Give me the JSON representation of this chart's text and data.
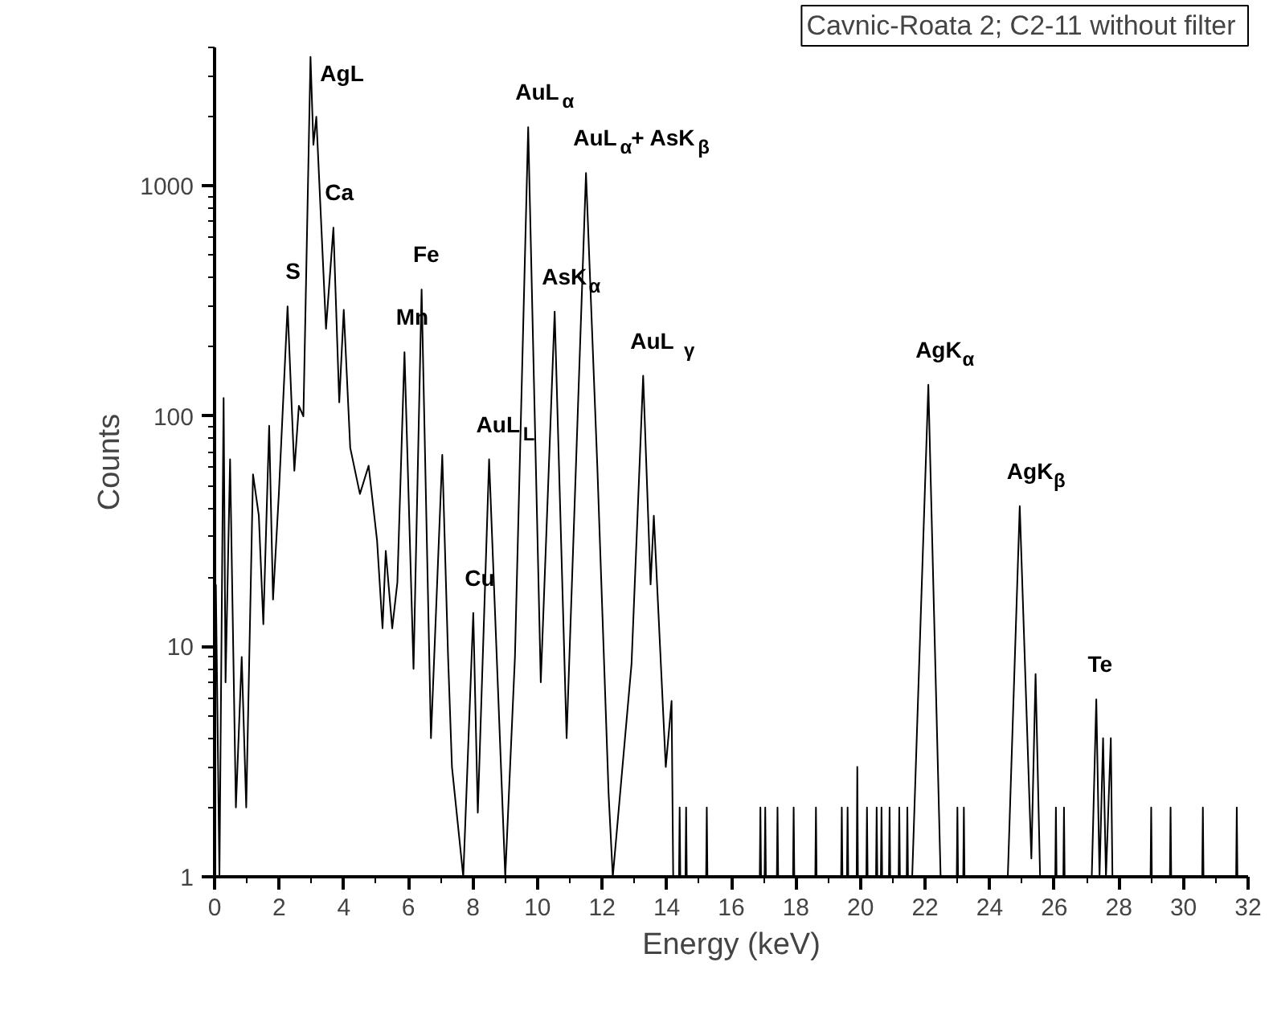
{
  "chart_data": {
    "type": "line",
    "title": "Cavnic-Roata 2;  C2-11 without filter",
    "xlabel": "Energy (keV)",
    "ylabel": "Counts",
    "log": "y",
    "grid": false,
    "marker": "none",
    "line_style": "solid",
    "xlim": [
      0,
      32
    ],
    "ylim": [
      1,
      4000
    ],
    "xticks": [
      0,
      2,
      4,
      6,
      8,
      10,
      12,
      14,
      16,
      18,
      20,
      22,
      24,
      26,
      28,
      30,
      32
    ],
    "yticks": [
      1,
      10,
      100,
      1000
    ],
    "series": [
      {
        "color": "#000000",
        "x": [
          0.04,
          0.15,
          0.28,
          0.34,
          0.48,
          0.66,
          0.84,
          0.98,
          1.19,
          1.37,
          1.51,
          1.69,
          1.81,
          1.99,
          2.26,
          2.47,
          2.61,
          2.75,
          2.97,
          3.06,
          3.15,
          3.45,
          3.68,
          3.86,
          4.0,
          4.2,
          4.5,
          4.77,
          5.03,
          5.2,
          5.3,
          5.5,
          5.66,
          5.88,
          6.16,
          6.41,
          6.7,
          7.05,
          7.23,
          7.35,
          7.7,
          8.01,
          8.15,
          8.5,
          9.0,
          9.3,
          9.71,
          10.1,
          10.53,
          10.9,
          11.5,
          11.85,
          12.2,
          12.33,
          12.91,
          13.27,
          13.5,
          13.6,
          13.97,
          14.15,
          14.2,
          14.38,
          14.4,
          14.42,
          14.58,
          14.6,
          14.62,
          15.22,
          15.24,
          15.26,
          16.88,
          16.9,
          16.92,
          17.03,
          17.05,
          17.07,
          17.41,
          17.43,
          17.45,
          17.91,
          17.93,
          17.95,
          18.6,
          18.62,
          18.64,
          19.4,
          19.42,
          19.44,
          19.58,
          19.6,
          19.62,
          19.88,
          19.9,
          19.92,
          20.18,
          20.2,
          20.22,
          20.48,
          20.5,
          20.52,
          20.63,
          20.65,
          20.67,
          20.88,
          20.9,
          20.92,
          21.18,
          21.2,
          21.22,
          21.43,
          21.45,
          21.47,
          21.6,
          22.1,
          22.48,
          22.98,
          23.0,
          23.02,
          23.18,
          23.2,
          23.22,
          24.56,
          24.93,
          25.29,
          25.42,
          25.56,
          26.03,
          26.05,
          26.07,
          26.28,
          26.3,
          26.32,
          27.16,
          27.3,
          27.4,
          27.51,
          27.6,
          27.75,
          27.8,
          28.98,
          29.0,
          29.02,
          29.58,
          29.6,
          29.62,
          30.58,
          30.6,
          30.62,
          31.63,
          31.65,
          31.67,
          32.0
        ],
        "values": [
          18.6,
          1,
          120,
          7,
          65,
          2,
          9,
          2,
          56,
          37,
          12.5,
          91,
          16,
          46,
          300,
          58,
          111,
          100,
          3640,
          1510,
          2000,
          240,
          660,
          115,
          290,
          73,
          46,
          61,
          29,
          12,
          26,
          12,
          19,
          190,
          8,
          355,
          4,
          68,
          9,
          3,
          1,
          14,
          1.9,
          65,
          1,
          9,
          1800,
          7,
          285,
          4,
          1140,
          61,
          2.3,
          1,
          8.4,
          150,
          18.6,
          37,
          3,
          5.8,
          1,
          1,
          2,
          1,
          1,
          2,
          1,
          1,
          2,
          1,
          1,
          2,
          1,
          1,
          2,
          1,
          1,
          2,
          1,
          1,
          2,
          1,
          1,
          2,
          1,
          1,
          2,
          1,
          1,
          2,
          1,
          1,
          3,
          1,
          1,
          2,
          1,
          1,
          2,
          1,
          1,
          2,
          1,
          1,
          2,
          1,
          1,
          2,
          1,
          1,
          2,
          1,
          1,
          137,
          1,
          1,
          2,
          1,
          1,
          2,
          1,
          1,
          40.7,
          1.2,
          7.6,
          1,
          1,
          2,
          1,
          1,
          2,
          1,
          1,
          5.9,
          1,
          4,
          1,
          4,
          1,
          1,
          2,
          1,
          1,
          2,
          1,
          1,
          2,
          1,
          1,
          2,
          1,
          1
        ]
      }
    ],
    "annotations": [
      {
        "text": "AgL",
        "x": 2.97,
        "y": 3640
      },
      {
        "text": "S",
        "x": 2.26,
        "y": 300
      },
      {
        "text": "Ca",
        "x": 3.68,
        "y": 660
      },
      {
        "text": "Mn",
        "x": 5.88,
        "y": 190
      },
      {
        "text": "Fe",
        "x": 6.41,
        "y": 355
      },
      {
        "text": "Cu",
        "x": 8.01,
        "y": 14
      },
      {
        "text": "AuL$_{L}$",
        "x": 8.5,
        "y": 65
      },
      {
        "text": "AuL$_{α}$",
        "x": 9.71,
        "y": 1800
      },
      {
        "text": "AsK$_{α}$",
        "x": 10.53,
        "y": 285
      },
      {
        "text": "AuL$_{α}$+ AsK$_{β}$",
        "x": 11.5,
        "y": 1140
      },
      {
        "text": "AuL $_{γ}$",
        "x": 13.27,
        "y": 150
      },
      {
        "text": "AgK$_{α}$",
        "x": 22.1,
        "y": 137
      },
      {
        "text": "AgK$_{β}$",
        "x": 24.93,
        "y": 40.7
      },
      {
        "text": "Te",
        "x": 27.3,
        "y": 5.9
      }
    ]
  }
}
